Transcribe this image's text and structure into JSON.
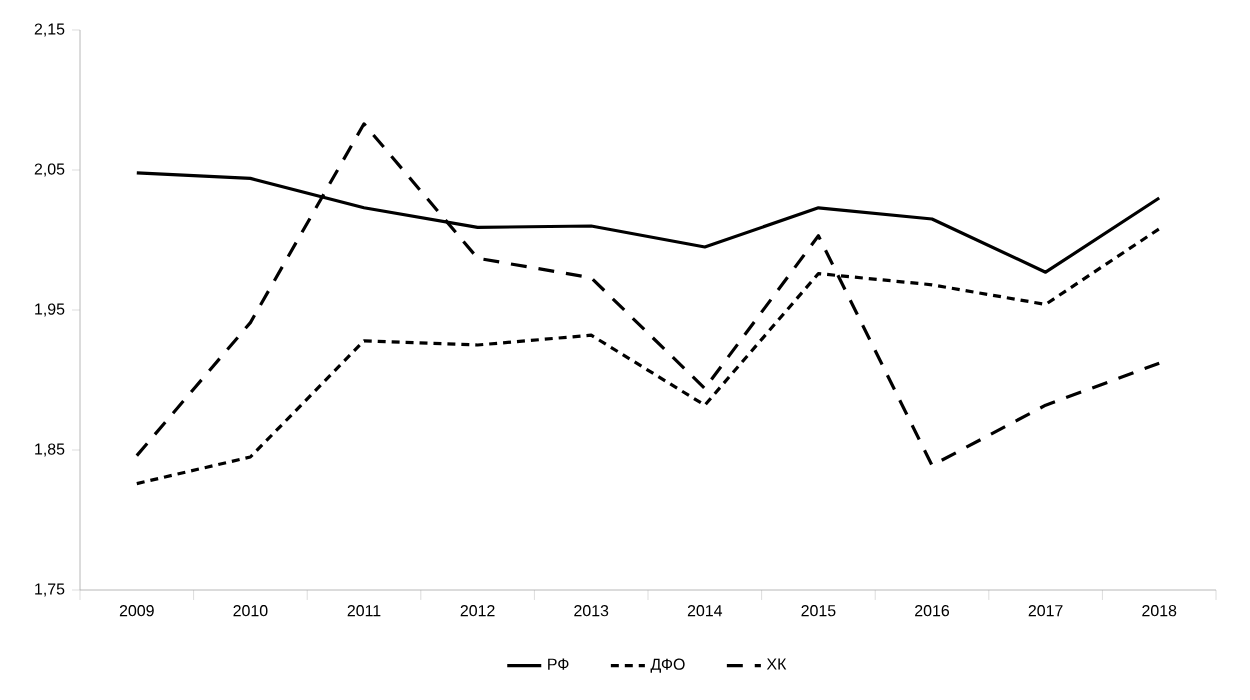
{
  "chart_data": {
    "type": "line",
    "categories": [
      "2009",
      "2010",
      "2011",
      "2012",
      "2013",
      "2014",
      "2015",
      "2016",
      "2017",
      "2018"
    ],
    "series": [
      {
        "name": "РФ",
        "color": "#000000",
        "line_style": "solid",
        "values": [
          2.048,
          2.044,
          2.023,
          2.009,
          2.01,
          1.995,
          2.023,
          2.015,
          1.977,
          2.03
        ]
      },
      {
        "name": "ДФО",
        "color": "#000000",
        "line_style": "dashed",
        "values": [
          1.826,
          1.845,
          1.928,
          1.925,
          1.932,
          1.882,
          1.976,
          1.968,
          1.954,
          2.008
        ]
      },
      {
        "name": "ХК",
        "color": "#000000",
        "line_style": "dashed",
        "values": [
          1.846,
          1.941,
          2.083,
          1.987,
          1.973,
          1.894,
          2.003,
          1.839,
          1.882,
          1.912
        ]
      }
    ],
    "ylim": [
      1.75,
      2.15
    ],
    "yticks": [
      {
        "value": 1.75,
        "label": "1,75"
      },
      {
        "value": 1.85,
        "label": "1,85"
      },
      {
        "value": 1.95,
        "label": "1,95"
      },
      {
        "value": 2.05,
        "label": "2,05"
      },
      {
        "value": 2.15,
        "label": "2,15"
      }
    ],
    "grid": false,
    "legend": "bottom",
    "marker": "none"
  }
}
